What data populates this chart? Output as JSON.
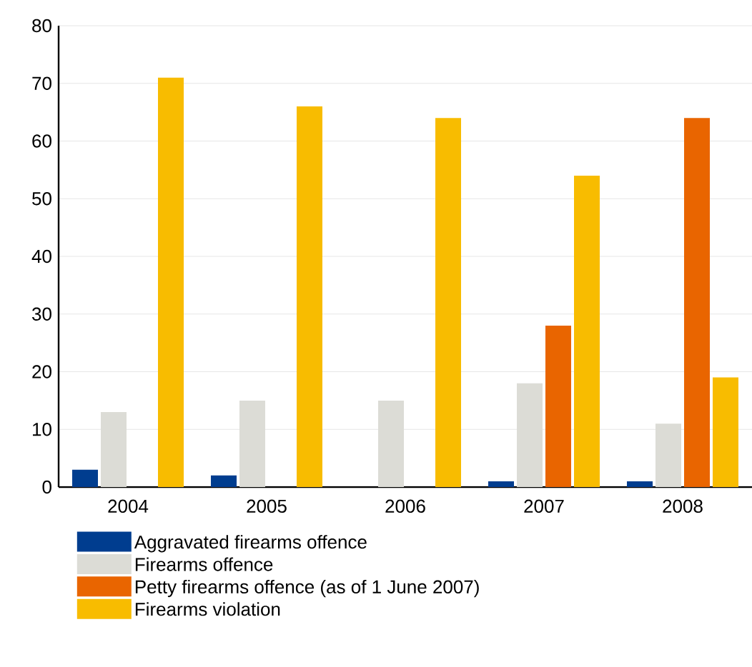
{
  "chart_data": {
    "type": "bar",
    "categories": [
      "2004",
      "2005",
      "2006",
      "2007",
      "2008"
    ],
    "series": [
      {
        "name": "Aggravated firearms offence",
        "color": "#003d8f",
        "values": [
          3,
          2,
          0,
          1,
          1
        ]
      },
      {
        "name": "Firearms offence",
        "color": "#dcdcd6",
        "values": [
          13,
          15,
          15,
          18,
          11
        ]
      },
      {
        "name": "Petty firearms offence (as of 1 June 2007)",
        "color": "#e96500",
        "values": [
          0,
          0,
          0,
          28,
          64
        ]
      },
      {
        "name": "Firearms violation",
        "color": "#f8bc00",
        "values": [
          71,
          66,
          64,
          54,
          19
        ]
      }
    ],
    "ylim": [
      0,
      80
    ],
    "yticks": [
      0,
      10,
      20,
      30,
      40,
      50,
      60,
      70,
      80
    ],
    "grid": "y",
    "legend": "bottom"
  }
}
